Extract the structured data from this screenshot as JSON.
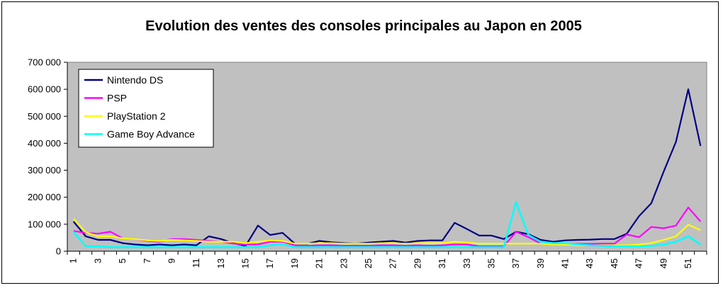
{
  "chart_data": {
    "type": "line",
    "title": "Evolution des ventes des consoles principales au Japon en 2005",
    "xlabel": "",
    "ylabel": "",
    "x": [
      1,
      2,
      3,
      4,
      5,
      6,
      7,
      8,
      9,
      10,
      11,
      12,
      13,
      14,
      15,
      16,
      17,
      18,
      19,
      20,
      21,
      22,
      23,
      24,
      25,
      26,
      27,
      28,
      29,
      30,
      31,
      32,
      33,
      34,
      35,
      36,
      37,
      38,
      39,
      40,
      41,
      42,
      43,
      44,
      45,
      46,
      47,
      48,
      49,
      50,
      51,
      52
    ],
    "x_tick_labels": [
      "1",
      "3",
      "5",
      "7",
      "9",
      "11",
      "13",
      "15",
      "17",
      "19",
      "21",
      "23",
      "25",
      "27",
      "29",
      "31",
      "33",
      "35",
      "37",
      "39",
      "41",
      "43",
      "45",
      "47",
      "49",
      "51"
    ],
    "ylim": [
      0,
      700000
    ],
    "y_ticks": [
      0,
      100000,
      200000,
      300000,
      400000,
      500000,
      600000,
      700000
    ],
    "y_tick_labels": [
      "0",
      "100 000",
      "200 000",
      "300 000",
      "400 000",
      "500 000",
      "600 000",
      "700 000"
    ],
    "plot_background": "#c0c0c0",
    "grid": false,
    "legend_position": "top-left",
    "series": [
      {
        "name": "Nintendo DS",
        "color": "#000080",
        "values": [
          110000,
          55000,
          42000,
          42000,
          30000,
          25000,
          22000,
          25000,
          22000,
          25000,
          22000,
          55000,
          45000,
          30000,
          20000,
          95000,
          60000,
          68000,
          28000,
          27000,
          38000,
          33000,
          30000,
          28000,
          32000,
          35000,
          38000,
          32000,
          38000,
          40000,
          40000,
          105000,
          82000,
          58000,
          58000,
          45000,
          72000,
          63000,
          42000,
          35000,
          40000,
          42000,
          43000,
          45000,
          45000,
          65000,
          130000,
          178000,
          295000,
          405000,
          600000,
          390000
        ]
      },
      {
        "name": "PSP",
        "color": "#ff00ff",
        "values": [
          75000,
          68000,
          65000,
          72000,
          48000,
          45000,
          38000,
          35000,
          45000,
          45000,
          42000,
          38000,
          35000,
          28000,
          25000,
          25000,
          35000,
          35000,
          22000,
          20000,
          22000,
          22000,
          20000,
          20000,
          20000,
          22000,
          22000,
          20000,
          22000,
          20000,
          22000,
          25000,
          25000,
          18000,
          18000,
          18000,
          72000,
          52000,
          28000,
          28000,
          28000,
          27000,
          27000,
          28000,
          28000,
          62000,
          52000,
          90000,
          85000,
          95000,
          162000,
          110000
        ]
      },
      {
        "name": "PlayStation 2",
        "color": "#ffff00",
        "values": [
          120000,
          70000,
          55000,
          55000,
          48000,
          45000,
          40000,
          38000,
          42000,
          40000,
          38000,
          35000,
          35000,
          35000,
          30000,
          35000,
          40000,
          38000,
          28000,
          28000,
          30000,
          30000,
          28000,
          28000,
          28000,
          30000,
          30000,
          28000,
          30000,
          30000,
          30000,
          35000,
          32000,
          28000,
          28000,
          28000,
          28000,
          28000,
          28000,
          25000,
          25000,
          22000,
          22000,
          22000,
          22000,
          22000,
          25000,
          30000,
          42000,
          55000,
          98000,
          78000
        ]
      },
      {
        "name": "Game Boy Advance",
        "color": "#00ffff",
        "values": [
          72000,
          18000,
          18000,
          15000,
          15000,
          15000,
          15000,
          15000,
          15000,
          15000,
          15000,
          15000,
          15000,
          15000,
          15000,
          15000,
          22000,
          25000,
          15000,
          15000,
          15000,
          15000,
          15000,
          15000,
          15000,
          15000,
          15000,
          15000,
          15000,
          15000,
          15000,
          15000,
          15000,
          15000,
          15000,
          15000,
          182000,
          60000,
          35000,
          30000,
          30000,
          25000,
          22000,
          20000,
          18000,
          18000,
          18000,
          20000,
          25000,
          35000,
          55000,
          25000
        ]
      }
    ]
  }
}
